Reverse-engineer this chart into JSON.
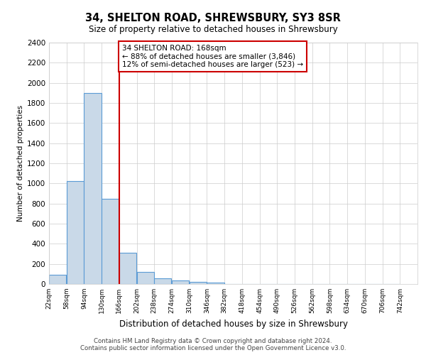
{
  "title1": "34, SHELTON ROAD, SHREWSBURY, SY3 8SR",
  "title2": "Size of property relative to detached houses in Shrewsbury",
  "xlabel": "Distribution of detached houses by size in Shrewsbury",
  "ylabel": "Number of detached properties",
  "bar_color": "#c9d9e8",
  "bar_edge_color": "#5b9bd5",
  "bin_labels": [
    "22sqm",
    "58sqm",
    "94sqm",
    "130sqm",
    "166sqm",
    "202sqm",
    "238sqm",
    "274sqm",
    "310sqm",
    "346sqm",
    "382sqm",
    "418sqm",
    "454sqm",
    "490sqm",
    "526sqm",
    "562sqm",
    "598sqm",
    "634sqm",
    "670sqm",
    "706sqm",
    "742sqm"
  ],
  "bar_values": [
    90,
    1020,
    1900,
    850,
    310,
    120,
    55,
    38,
    20,
    15,
    0,
    0,
    0,
    0,
    0,
    0,
    0,
    0,
    0,
    0
  ],
  "bin_width": 36,
  "red_line_x": 166,
  "annotation_text": "34 SHELTON ROAD: 168sqm\n← 88% of detached houses are smaller (3,846)\n12% of semi-detached houses are larger (523) →",
  "annotation_box_color": "#ffffff",
  "annotation_border_color": "#cc0000",
  "red_line_color": "#cc0000",
  "ylim": [
    0,
    2400
  ],
  "yticks": [
    0,
    200,
    400,
    600,
    800,
    1000,
    1200,
    1400,
    1600,
    1800,
    2000,
    2200,
    2400
  ],
  "footnote1": "Contains HM Land Registry data © Crown copyright and database right 2024.",
  "footnote2": "Contains public sector information licensed under the Open Government Licence v3.0.",
  "grid_color": "#cccccc",
  "background_color": "#ffffff",
  "plot_bg_color": "#ffffff"
}
